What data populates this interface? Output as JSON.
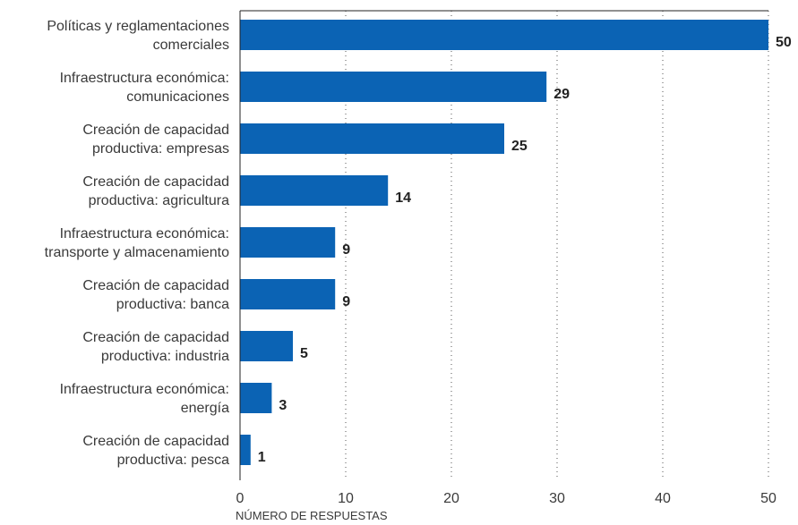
{
  "chart_data": {
    "type": "bar",
    "orientation": "horizontal",
    "categories": [
      [
        "Políticas y reglamentaciones",
        "comerciales"
      ],
      [
        "Infraestructura económica:",
        "comunicaciones"
      ],
      [
        "Creación de capacidad",
        "productiva: empresas"
      ],
      [
        "Creación de capacidad",
        "productiva: agricultura"
      ],
      [
        "Infraestructura económica:",
        "transporte y almacenamiento"
      ],
      [
        "Creación de capacidad",
        "productiva: banca"
      ],
      [
        "Creación de capacidad",
        "productiva: industria"
      ],
      [
        "Infraestructura económica:",
        "energía"
      ],
      [
        "Creación de capacidad",
        "productiva: pesca"
      ]
    ],
    "values": [
      50,
      29,
      25,
      14,
      9,
      9,
      5,
      3,
      1
    ],
    "xlabel": "NÚMERO DE RESPUESTAS",
    "xlim": [
      0,
      50
    ],
    "xticks": [
      0,
      10,
      20,
      30,
      40,
      50
    ],
    "grid": "vertical dotted",
    "bar_color": "#0b63b4"
  }
}
